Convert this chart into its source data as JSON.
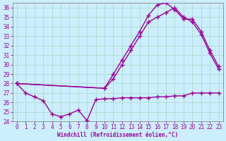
{
  "xlabel": "Windchill (Refroidissement éolien,°C)",
  "background_color": "#cceeff",
  "grid_color": "#aaddcc",
  "line_color": "#990099",
  "xlim": [
    -0.5,
    23.5
  ],
  "ylim": [
    24,
    36.5
  ],
  "yticks": [
    24,
    25,
    26,
    27,
    28,
    29,
    30,
    31,
    32,
    33,
    34,
    35,
    36
  ],
  "xticks": [
    0,
    1,
    2,
    3,
    4,
    5,
    6,
    7,
    8,
    9,
    10,
    11,
    12,
    13,
    14,
    15,
    16,
    17,
    18,
    19,
    20,
    21,
    22,
    23
  ],
  "curve1_x": [
    0,
    1,
    2,
    3,
    4,
    5,
    6,
    7,
    8,
    9,
    10,
    11,
    12,
    13,
    14,
    15,
    16,
    17,
    18,
    19,
    20,
    21,
    22,
    23
  ],
  "curve1_y": [
    28.0,
    27.0,
    26.6,
    26.2,
    24.8,
    24.5,
    24.8,
    25.2,
    24.1,
    26.3,
    26.4,
    26.4,
    26.5,
    26.5,
    26.5,
    26.5,
    26.6,
    26.6,
    26.7,
    26.7,
    27.0,
    27.0,
    27.0,
    27.0
  ],
  "curve2_x": [
    0,
    10,
    11,
    12,
    13,
    14,
    15,
    16,
    17,
    18,
    19,
    20,
    21,
    22,
    23
  ],
  "curve2_y": [
    28.0,
    27.5,
    28.5,
    30.0,
    31.5,
    33.0,
    34.5,
    35.0,
    35.5,
    36.0,
    35.0,
    34.5,
    33.2,
    31.2,
    29.5
  ],
  "curve3_x": [
    0,
    10,
    11,
    12,
    13,
    14,
    15,
    16,
    17,
    18,
    19,
    20,
    21,
    22,
    23
  ],
  "curve3_y": [
    28.0,
    27.5,
    29.0,
    30.5,
    32.0,
    33.5,
    35.2,
    36.3,
    36.5,
    35.8,
    34.8,
    34.8,
    33.5,
    31.5,
    29.8
  ],
  "marker": "+",
  "markersize": 4,
  "linewidth": 1.0
}
